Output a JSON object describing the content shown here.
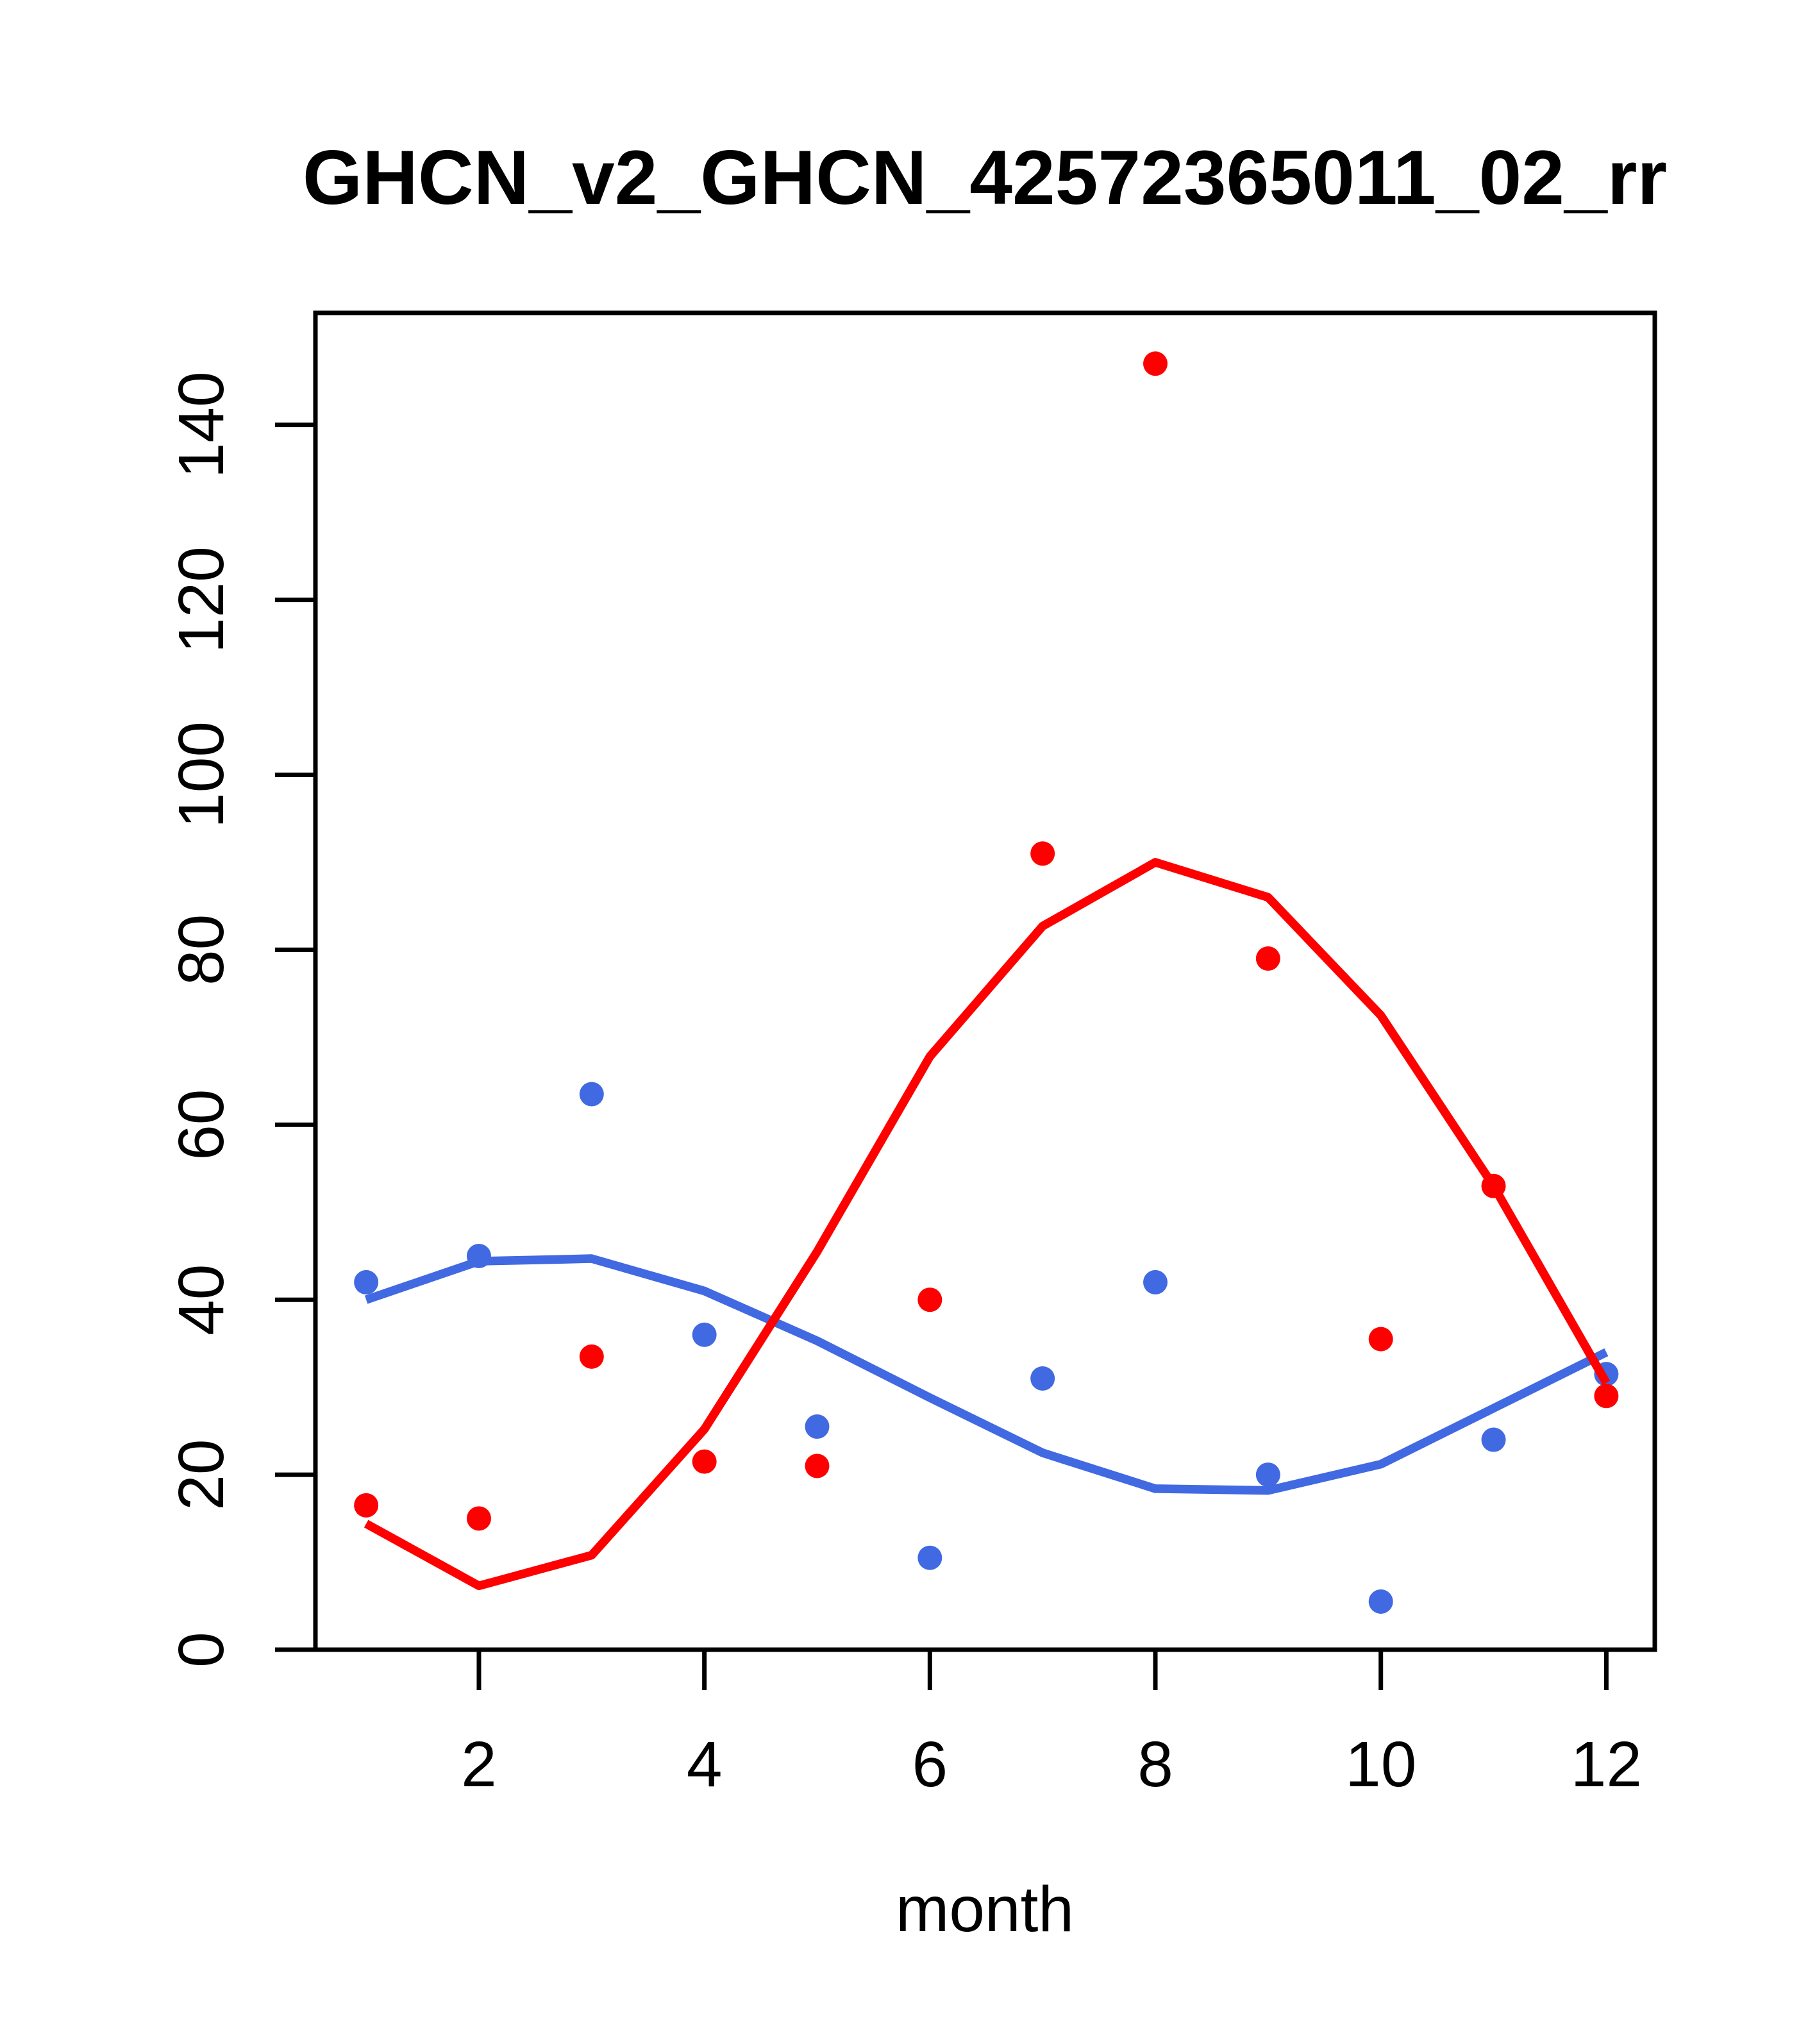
{
  "title": "GHCN_v2_GHCN_42572365011_02_rr",
  "chart_data": {
    "type": "scatter",
    "title": "GHCN_v2_GHCN_42572365011_02_rr",
    "xlabel": "month",
    "ylabel": "",
    "grid": false,
    "legend_position": "none",
    "background_color": "#ffffff",
    "x": [
      1,
      2,
      3,
      4,
      5,
      6,
      7,
      8,
      9,
      10,
      11,
      12
    ],
    "x_ticks": [
      2,
      4,
      6,
      8,
      10,
      12
    ],
    "y_ticks": [
      0,
      20,
      40,
      60,
      80,
      100,
      120,
      140
    ],
    "xlim": [
      0.55,
      12.43
    ],
    "ylim": [
      0,
      152.8
    ],
    "series": [
      {
        "name": "series-blue-points",
        "kind": "points",
        "color": "#4169E1",
        "values": [
          42,
          45,
          63.5,
          36,
          25.5,
          10.5,
          31,
          42,
          20,
          5.5,
          24,
          31.5
        ]
      },
      {
        "name": "series-blue-smooth",
        "kind": "line",
        "color": "#4169E1",
        "values": [
          40,
          44.4,
          44.7,
          41,
          35.3,
          28.8,
          22.5,
          18.4,
          18.2,
          21.2,
          27.6,
          34
        ]
      },
      {
        "name": "series-red-points",
        "kind": "points",
        "color": "#FF0000",
        "values": [
          16.5,
          15,
          33.5,
          21.5,
          21,
          40,
          91,
          147,
          79,
          35.5,
          53,
          29
        ]
      },
      {
        "name": "series-red-smooth",
        "kind": "line",
        "color": "#FF0000",
        "values": [
          14.4,
          7.3,
          10.8,
          25.2,
          45.5,
          67.8,
          82.7,
          90,
          86,
          72.5,
          53,
          30.5
        ]
      }
    ]
  }
}
